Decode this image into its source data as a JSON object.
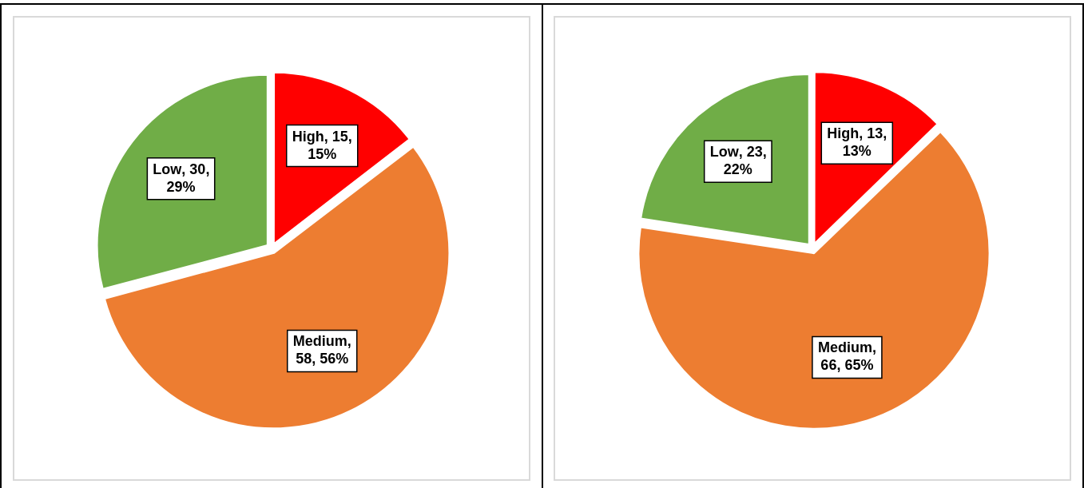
{
  "chart_data": [
    {
      "type": "pie",
      "categories": [
        "High",
        "Medium",
        "Low"
      ],
      "values": [
        15,
        58,
        30
      ],
      "colors": [
        "#ff0000",
        "#ed7d31",
        "#70ad47"
      ],
      "value_labels": [
        ", 15, 15%",
        ", 58, 56%",
        ", 30, 29%"
      ],
      "legend": false
    },
    {
      "type": "pie",
      "categories": [
        "High",
        "Medium",
        "Low"
      ],
      "values": [
        13,
        66,
        23
      ],
      "colors": [
        "#ff0000",
        "#ed7d31",
        "#70ad47"
      ],
      "value_labels": [
        ", 13, 13%",
        ", 66, 65%",
        ", 23, 22%"
      ],
      "legend": false
    }
  ]
}
